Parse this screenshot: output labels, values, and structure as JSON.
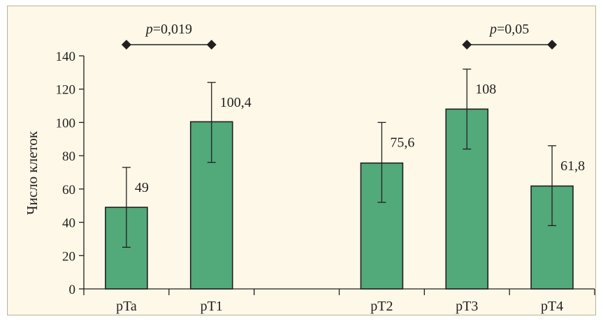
{
  "chart_data": {
    "type": "bar",
    "categories": [
      "pTa",
      "pT1",
      "",
      "pT2",
      "pT3",
      "pT4"
    ],
    "values": [
      49,
      100.4,
      null,
      75.6,
      108,
      61.8
    ],
    "value_labels": [
      "49",
      "100,4",
      "",
      "75,6",
      "108",
      "61,8"
    ],
    "error_high": [
      73,
      124,
      null,
      100,
      132,
      86
    ],
    "error_low": [
      25,
      76,
      null,
      52,
      84,
      38
    ],
    "ylabel": "Число клеток",
    "xlabel": "",
    "ylim": [
      0,
      140
    ],
    "yticks": [
      0,
      20,
      40,
      60,
      80,
      100,
      120,
      140
    ],
    "ytick_labels": [
      "0",
      "20",
      "40",
      "60",
      "80",
      "100",
      "120",
      "140"
    ],
    "grid": false,
    "comparisons": [
      {
        "from": 0,
        "to": 1,
        "p_symbol": "p",
        "p_value": "=0,019"
      },
      {
        "from": 4,
        "to": 5,
        "p_symbol": "p",
        "p_value": "=0,05"
      }
    ]
  },
  "colors": {
    "bar_fill": "#52a97a",
    "bar_stroke": "#231f20",
    "axis": "#231f20",
    "background": "#fdf8e7",
    "frame": "#b9b39a"
  }
}
